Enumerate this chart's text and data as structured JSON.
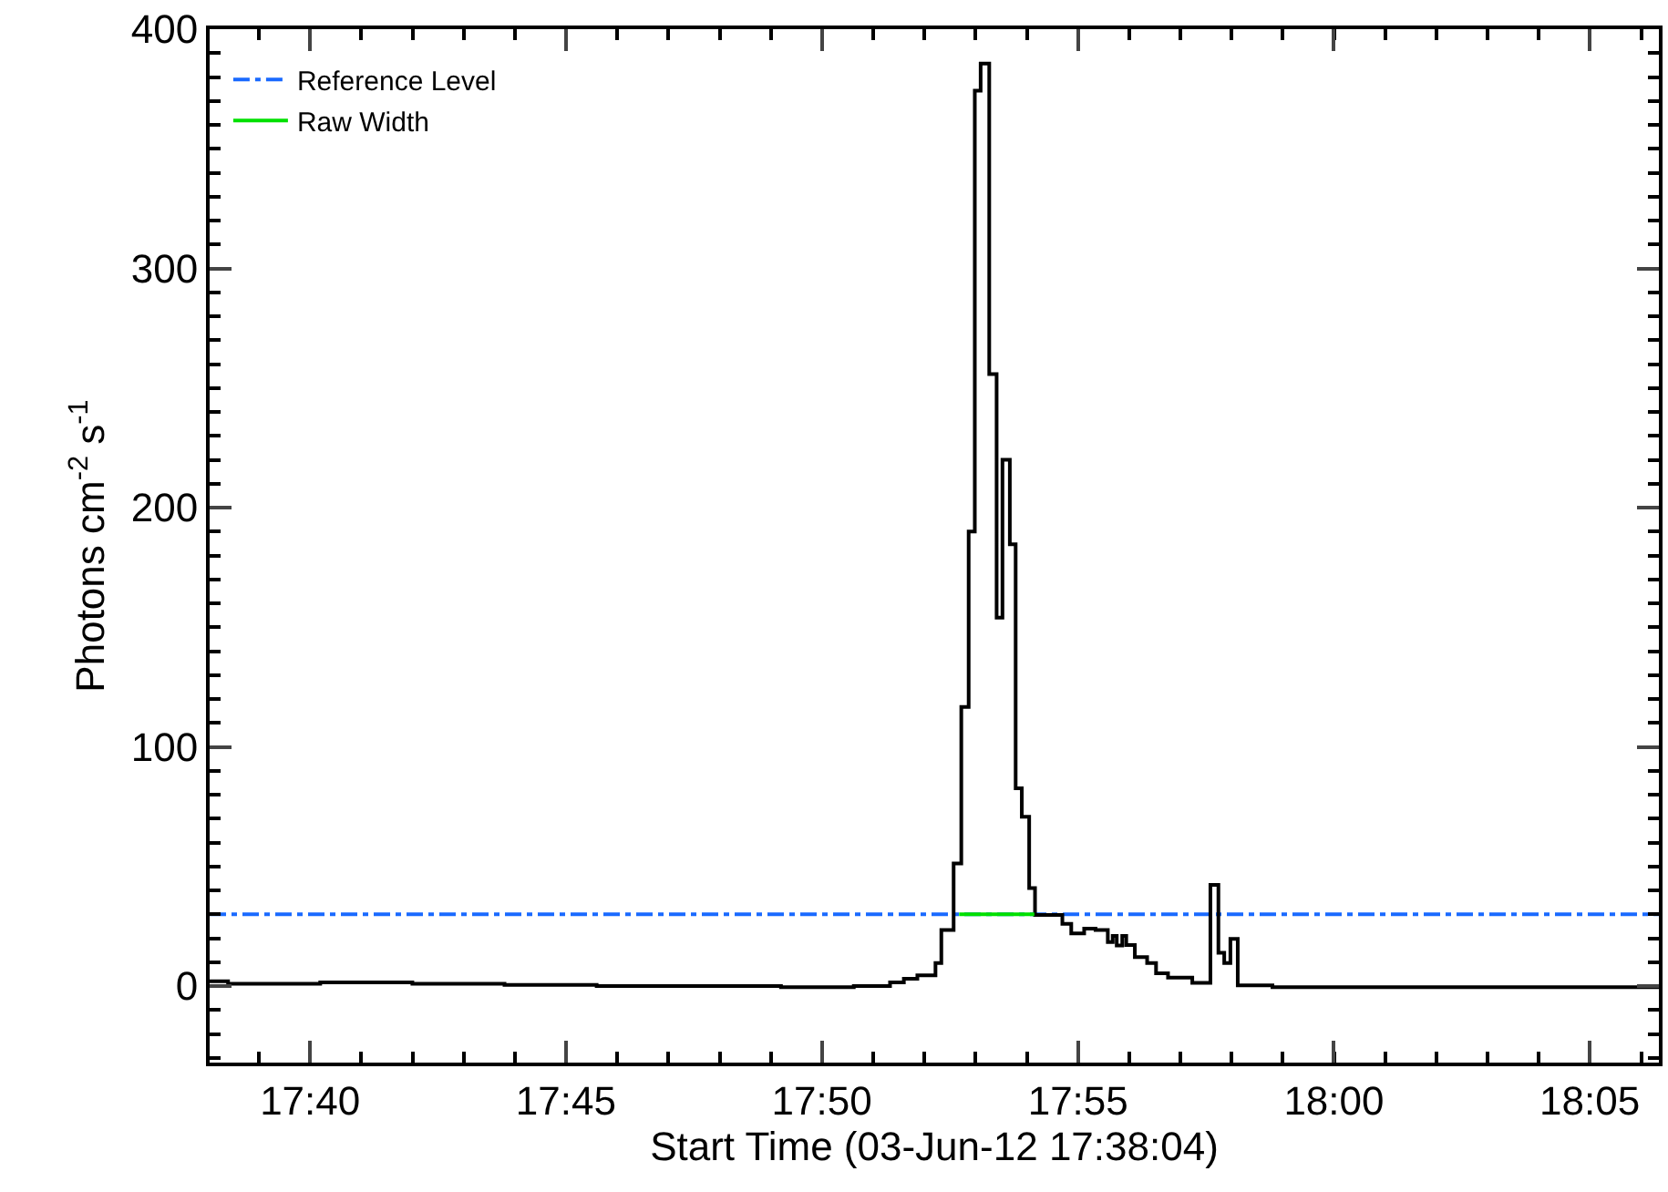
{
  "chart_data": {
    "type": "step",
    "xlabel": "Start Time (03-Jun-12 17:38:04)",
    "ylabel": "Photons cm$^{-2}$ s$^{-1}$",
    "xlim": [
      17.634,
      18.1058
    ],
    "ylim": [
      -32,
      400
    ],
    "xticks": [
      {
        "value": 17.6667,
        "label": "17:40"
      },
      {
        "value": 17.75,
        "label": "17:45"
      },
      {
        "value": 17.8333,
        "label": "17:50"
      },
      {
        "value": 17.9167,
        "label": "17:55"
      },
      {
        "value": 18.0,
        "label": "18:00"
      },
      {
        "value": 18.0833,
        "label": "18:05"
      }
    ],
    "yticks": [
      0,
      100,
      200,
      300,
      400
    ],
    "series": [
      {
        "color": "#000000",
        "x": [
          17.634,
          17.64,
          17.67,
          17.7,
          17.73,
          17.76,
          17.79,
          17.82,
          17.8437,
          17.8555,
          17.86,
          17.8644,
          17.8703,
          17.8722,
          17.8762,
          17.8787,
          17.8811,
          17.8831,
          17.885,
          17.8878,
          17.8902,
          17.8921,
          17.8945,
          17.8964,
          17.8984,
          17.9008,
          17.9027,
          17.9116,
          17.9145,
          17.9187,
          17.9224,
          17.9264,
          17.928,
          17.9293,
          17.9311,
          17.9324,
          17.9352,
          17.9392,
          17.9421,
          17.946,
          17.9539,
          17.9598,
          17.9624,
          17.9643,
          17.9663,
          17.9687,
          17.98,
          18.02,
          18.1058
        ],
        "values": [
          2,
          1,
          1.5,
          1,
          0.5,
          0,
          0,
          -0.5,
          0,
          1.5,
          3,
          4.5,
          9.6,
          23.4,
          51.2,
          116.7,
          190,
          374.3,
          385.6,
          255.8,
          154,
          220,
          184.7,
          82.7,
          70.8,
          41,
          29.7,
          26,
          22,
          24,
          23.4,
          18.4,
          21,
          17,
          21,
          17.1,
          12.1,
          9.6,
          5.3,
          3.5,
          1.3,
          42.3,
          13.9,
          9.6,
          19.7,
          0.3,
          -0.5,
          -0.5,
          -0.5
        ]
      },
      {
        "type": "line",
        "name": "Raw Width",
        "color": "#00e000",
        "x": [
          17.878,
          17.9025
        ],
        "values": [
          30,
          30
        ]
      }
    ],
    "ref_lines": [
      {
        "axis": "y",
        "value": 30,
        "label": "Reference Level",
        "color": "#1a6aff",
        "line_style": "dashdot"
      }
    ],
    "legend": "top left"
  }
}
